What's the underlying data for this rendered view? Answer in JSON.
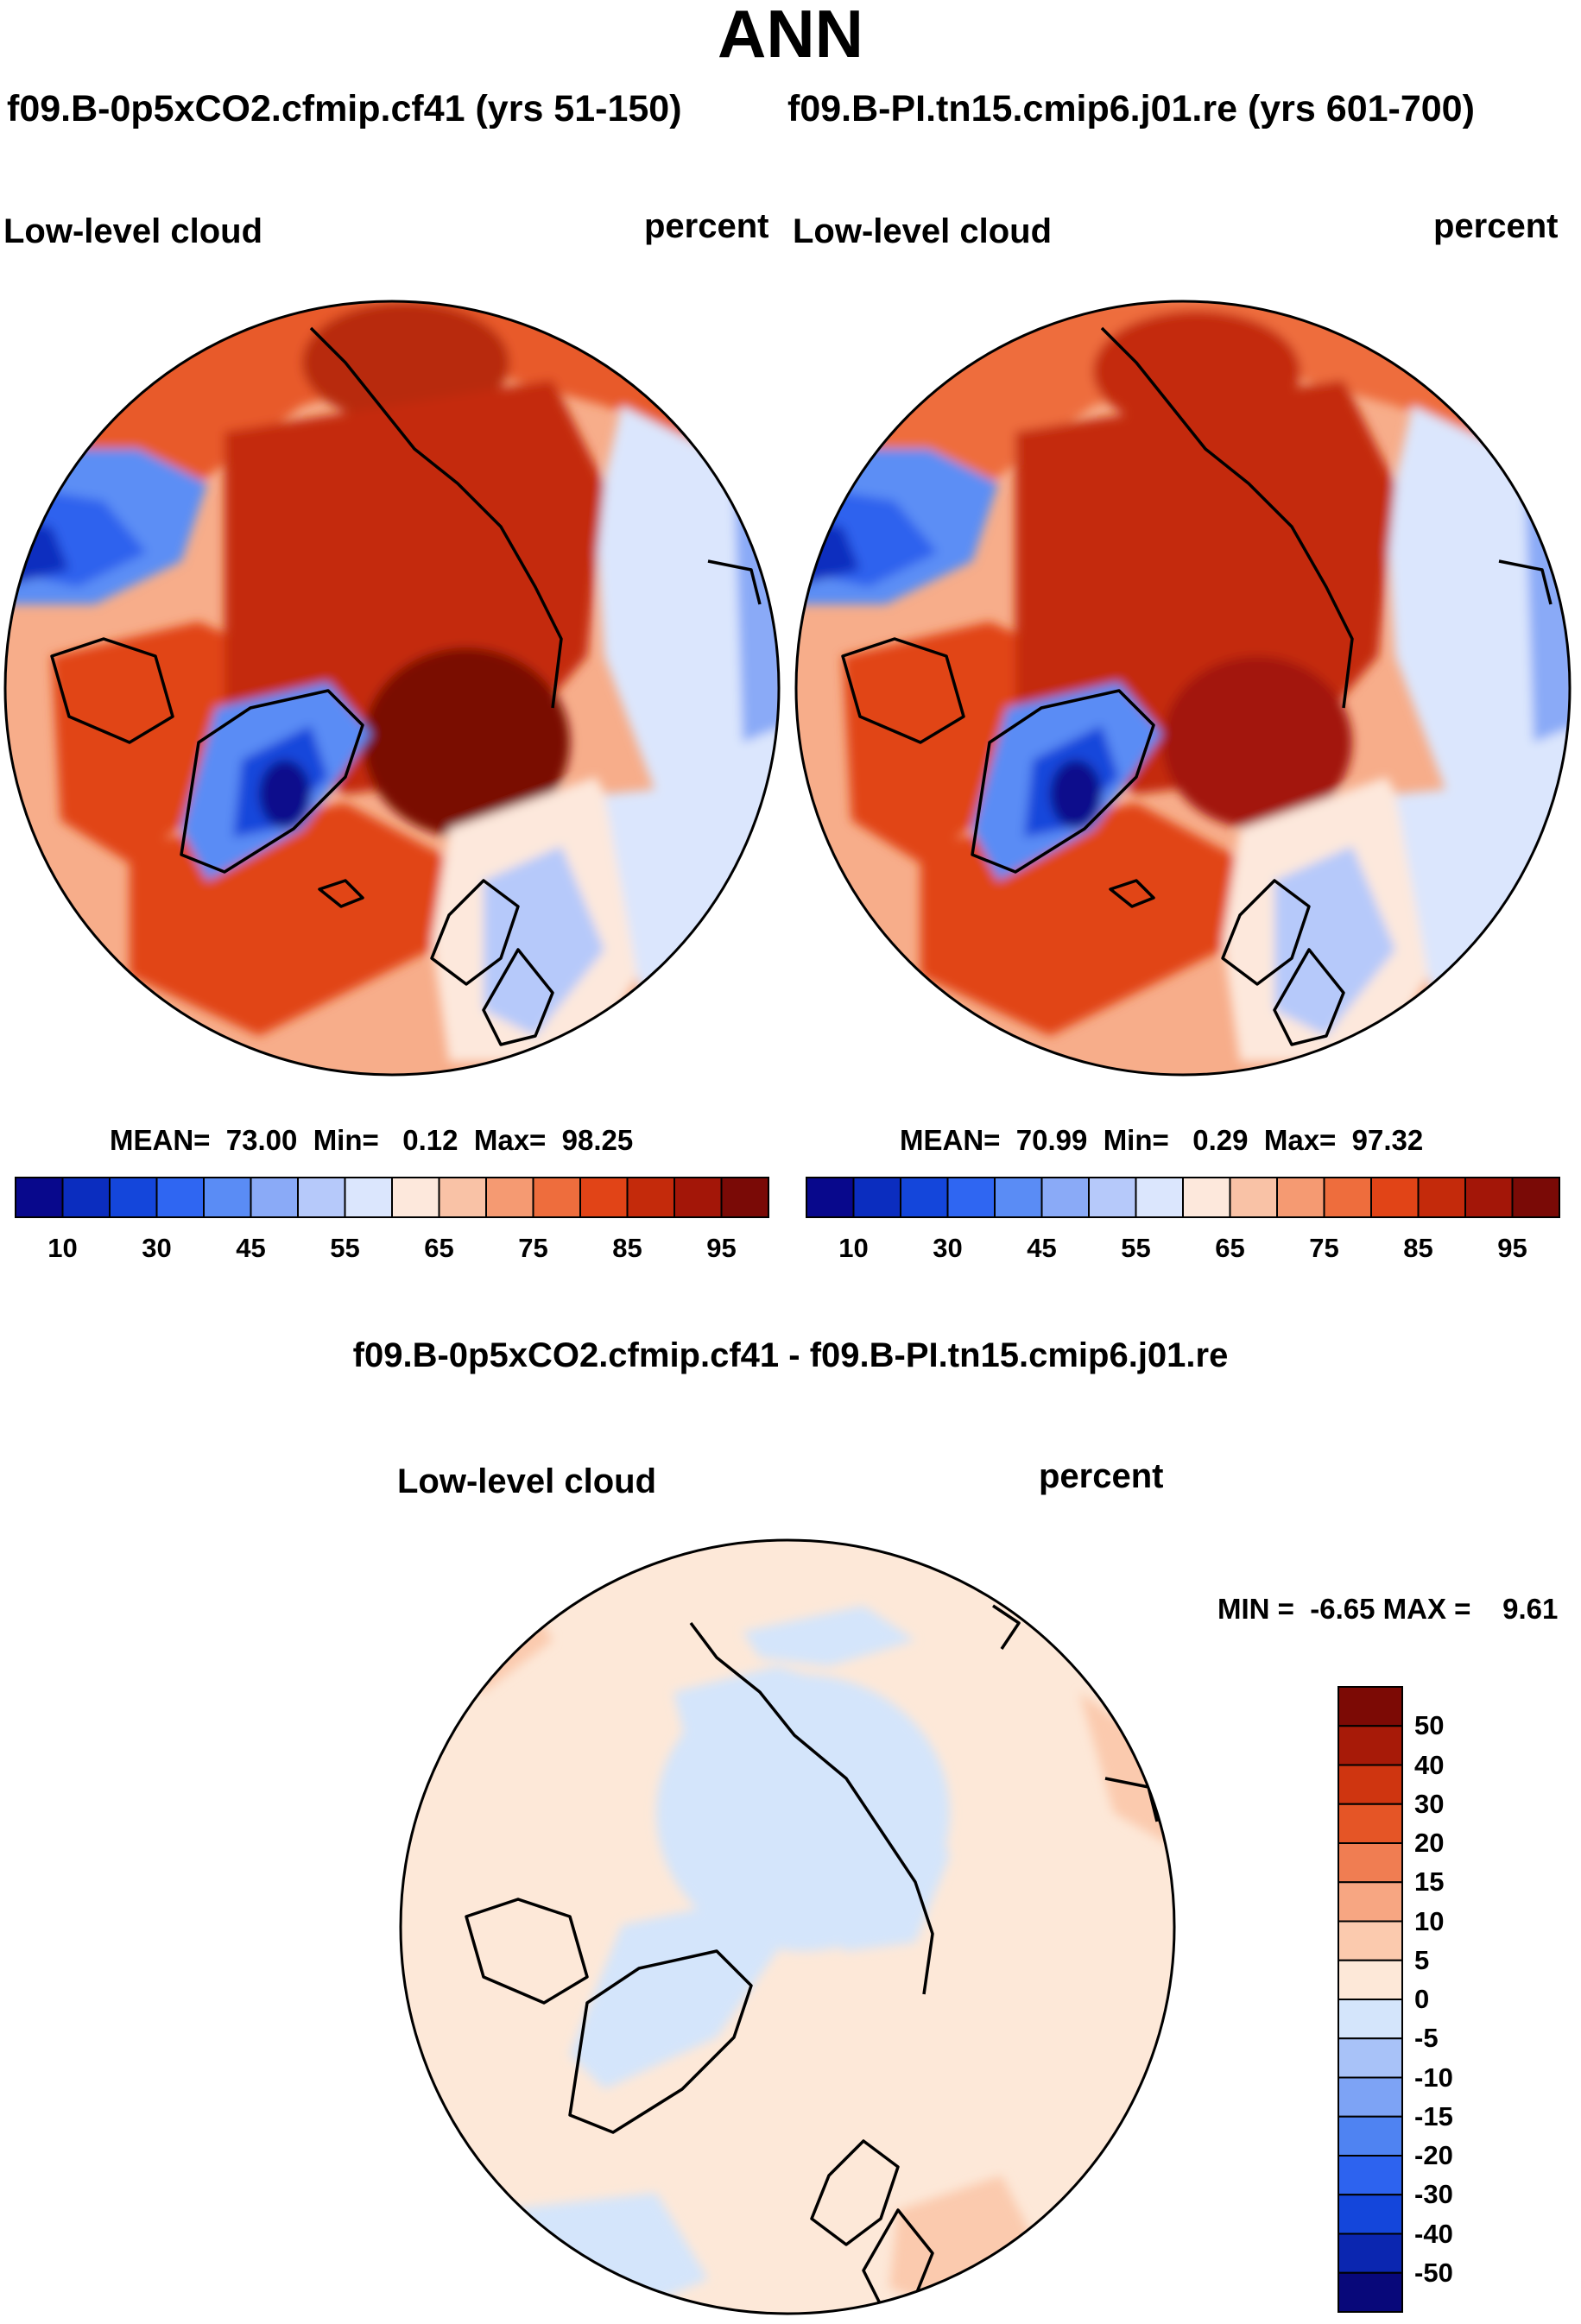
{
  "title": "ANN",
  "cases": {
    "test": "f09.B-0p5xCO2.cfmip.cf41 (yrs 51-150)",
    "control": "f09.B-PI.tn15.cmip6.j01.re (yrs 601-700)"
  },
  "panels": [
    {
      "id": "test",
      "variable": "Low-level cloud",
      "units": "percent",
      "stats_text": "MEAN=  73.00  Min=   0.12  Max=  98.25",
      "mean": 73.0,
      "min": 0.12,
      "max": 98.25
    },
    {
      "id": "control",
      "variable": "Low-level cloud",
      "units": "percent",
      "stats_text": "MEAN=  70.99  Min=   0.29  Max=  97.32",
      "mean": 70.99,
      "min": 0.29,
      "max": 97.32
    }
  ],
  "difference": {
    "title": "f09.B-0p5xCO2.cfmip.cf41 - f09.B-PI.tn15.cmip6.j01.re",
    "variable": "Low-level cloud",
    "units": "percent",
    "stats_text": "MIN =  -6.65 MAX =    9.61",
    "min": -6.65,
    "max": 9.61
  },
  "chart_data": [
    {
      "type": "heatmap",
      "projection": "north polar stereographic",
      "title": "Low-level cloud",
      "units": "percent",
      "colorbar": {
        "orientation": "horizontal",
        "levels": [
          10,
          20,
          30,
          40,
          45,
          50,
          55,
          60,
          65,
          70,
          75,
          80,
          85,
          90,
          95
        ],
        "tick_labels": [
          "10",
          "30",
          "45",
          "55",
          "65",
          "75",
          "85",
          "95"
        ],
        "colors": [
          "#08088c",
          "#0b2dbf",
          "#1446db",
          "#2f66f2",
          "#5a8cf5",
          "#8aaaf7",
          "#b6c9fa",
          "#dbe6fd",
          "#fde8dc",
          "#f9c2a6",
          "#f59a72",
          "#ee6d3d",
          "#e14417",
          "#c42a0b",
          "#a31608",
          "#7a0a06"
        ]
      },
      "stats": {
        "mean": 73.0,
        "min": 0.12,
        "max": 98.25
      }
    },
    {
      "type": "heatmap",
      "projection": "north polar stereographic",
      "title": "Low-level cloud",
      "units": "percent",
      "colorbar": {
        "orientation": "horizontal",
        "levels": [
          10,
          20,
          30,
          40,
          45,
          50,
          55,
          60,
          65,
          70,
          75,
          80,
          85,
          90,
          95
        ],
        "tick_labels": [
          "10",
          "30",
          "45",
          "55",
          "65",
          "75",
          "85",
          "95"
        ],
        "colors": [
          "#08088c",
          "#0b2dbf",
          "#1446db",
          "#2f66f2",
          "#5a8cf5",
          "#8aaaf7",
          "#b6c9fa",
          "#dbe6fd",
          "#fde8dc",
          "#f9c2a6",
          "#f59a72",
          "#ee6d3d",
          "#e14417",
          "#c42a0b",
          "#a31608",
          "#7a0a06"
        ]
      },
      "stats": {
        "mean": 70.99,
        "min": 0.29,
        "max": 97.32
      }
    },
    {
      "type": "heatmap",
      "projection": "north polar stereographic",
      "title": "f09.B-0p5xCO2.cfmip.cf41 - f09.B-PI.tn15.cmip6.j01.re",
      "units": "percent",
      "colorbar": {
        "orientation": "vertical",
        "levels": [
          -50,
          -40,
          -30,
          -20,
          -15,
          -10,
          -5,
          0,
          5,
          10,
          15,
          20,
          30,
          40,
          50
        ],
        "tick_labels": [
          "50",
          "40",
          "30",
          "20",
          "15",
          "10",
          "5",
          "0",
          "-5",
          "-10",
          "-15",
          "-20",
          "-30",
          "-40",
          "-50"
        ],
        "colors": [
          "#08087a",
          "#0b26b0",
          "#1446db",
          "#2d63ef",
          "#4f83f2",
          "#7da3f5",
          "#a8c2f8",
          "#d4e5fb",
          "#fde8d8",
          "#fbcaae",
          "#f7a682",
          "#f07d52",
          "#e55526",
          "#cf3510",
          "#a71a08",
          "#7c0a05"
        ]
      },
      "stats": {
        "min": -6.65,
        "max": 9.61
      }
    }
  ]
}
